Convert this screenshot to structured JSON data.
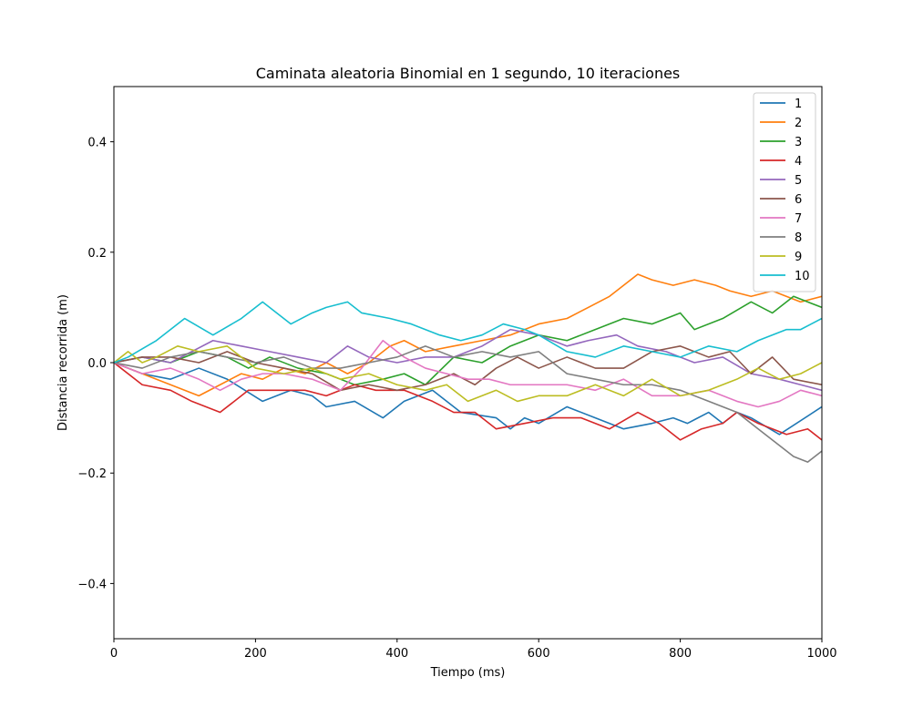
{
  "chart_data": {
    "type": "line",
    "title": "Caminata aleatoria Binomial en 1 segundo, 10 iteraciones",
    "xlabel": "Tiempo (ms)",
    "ylabel": "Distancia recorrida (m)",
    "xlim": [
      0,
      1000
    ],
    "ylim": [
      -0.5,
      0.5
    ],
    "xticks": [
      0,
      200,
      400,
      600,
      800,
      1000
    ],
    "xtick_labels": [
      "0",
      "200",
      "400",
      "600",
      "800",
      "1000"
    ],
    "yticks": [
      -0.4,
      -0.2,
      0.0,
      0.2,
      0.4
    ],
    "ytick_labels": [
      "−0.4",
      "−0.2",
      "0.0",
      "0.2",
      "0.4"
    ],
    "grid": false,
    "legend_position": "top-right",
    "series": [
      {
        "name": "1",
        "color": "#1f77b4",
        "x": [
          0,
          40,
          80,
          120,
          160,
          210,
          250,
          280,
          300,
          340,
          380,
          410,
          450,
          490,
          540,
          560,
          580,
          600,
          640,
          680,
          720,
          760,
          790,
          810,
          840,
          860,
          880,
          900,
          940,
          1000
        ],
        "y": [
          0.0,
          -0.02,
          -0.03,
          -0.01,
          -0.03,
          -0.07,
          -0.05,
          -0.06,
          -0.08,
          -0.07,
          -0.1,
          -0.07,
          -0.05,
          -0.09,
          -0.1,
          -0.12,
          -0.1,
          -0.11,
          -0.08,
          -0.1,
          -0.12,
          -0.11,
          -0.1,
          -0.11,
          -0.09,
          -0.11,
          -0.09,
          -0.1,
          -0.13,
          -0.08
        ]
      },
      {
        "name": "2",
        "color": "#ff7f0e",
        "x": [
          0,
          40,
          80,
          120,
          150,
          180,
          210,
          240,
          270,
          300,
          330,
          360,
          390,
          410,
          440,
          480,
          520,
          560,
          600,
          640,
          670,
          700,
          740,
          760,
          790,
          820,
          850,
          870,
          900,
          930,
          970,
          1000
        ],
        "y": [
          0.0,
          -0.02,
          -0.04,
          -0.06,
          -0.04,
          -0.02,
          -0.03,
          -0.01,
          -0.02,
          0.0,
          -0.02,
          0.0,
          0.03,
          0.04,
          0.02,
          0.03,
          0.04,
          0.05,
          0.07,
          0.08,
          0.1,
          0.12,
          0.16,
          0.15,
          0.14,
          0.15,
          0.14,
          0.13,
          0.12,
          0.13,
          0.11,
          0.12
        ]
      },
      {
        "name": "3",
        "color": "#2ca02c",
        "x": [
          0,
          40,
          80,
          120,
          160,
          190,
          220,
          260,
          300,
          340,
          380,
          410,
          440,
          480,
          520,
          560,
          600,
          640,
          680,
          720,
          760,
          800,
          820,
          860,
          900,
          930,
          960,
          1000
        ],
        "y": [
          0.0,
          0.01,
          0.0,
          0.02,
          0.01,
          -0.01,
          0.01,
          -0.01,
          -0.02,
          -0.04,
          -0.03,
          -0.02,
          -0.04,
          0.01,
          0.0,
          0.03,
          0.05,
          0.04,
          0.06,
          0.08,
          0.07,
          0.09,
          0.06,
          0.08,
          0.11,
          0.09,
          0.12,
          0.1
        ]
      },
      {
        "name": "4",
        "color": "#d62728",
        "x": [
          0,
          40,
          80,
          110,
          150,
          190,
          230,
          270,
          300,
          340,
          370,
          410,
          450,
          480,
          510,
          540,
          580,
          620,
          660,
          700,
          740,
          770,
          800,
          830,
          860,
          880,
          910,
          950,
          980,
          1000
        ],
        "y": [
          0.0,
          -0.04,
          -0.05,
          -0.07,
          -0.09,
          -0.05,
          -0.05,
          -0.05,
          -0.06,
          -0.04,
          -0.05,
          -0.05,
          -0.07,
          -0.09,
          -0.09,
          -0.12,
          -0.11,
          -0.1,
          -0.1,
          -0.12,
          -0.09,
          -0.11,
          -0.14,
          -0.12,
          -0.11,
          -0.09,
          -0.11,
          -0.13,
          -0.12,
          -0.14
        ]
      },
      {
        "name": "5",
        "color": "#9467bd",
        "x": [
          0,
          40,
          80,
          110,
          140,
          180,
          220,
          260,
          300,
          330,
          360,
          400,
          440,
          480,
          520,
          560,
          600,
          640,
          670,
          710,
          740,
          780,
          820,
          860,
          900,
          940,
          970,
          1000
        ],
        "y": [
          0.0,
          0.01,
          0.0,
          0.02,
          0.04,
          0.03,
          0.02,
          0.01,
          0.0,
          0.03,
          0.01,
          0.0,
          0.01,
          0.01,
          0.03,
          0.06,
          0.05,
          0.03,
          0.04,
          0.05,
          0.03,
          0.02,
          0.0,
          0.01,
          -0.02,
          -0.03,
          -0.04,
          -0.05
        ]
      },
      {
        "name": "6",
        "color": "#8c564b",
        "x": [
          0,
          40,
          80,
          120,
          160,
          200,
          240,
          280,
          320,
          360,
          400,
          440,
          480,
          510,
          540,
          570,
          600,
          640,
          680,
          720,
          760,
          800,
          840,
          870,
          900,
          930,
          960,
          1000
        ],
        "y": [
          0.0,
          0.01,
          0.01,
          0.0,
          0.02,
          0.0,
          -0.01,
          -0.02,
          -0.05,
          -0.04,
          -0.05,
          -0.04,
          -0.02,
          -0.04,
          -0.01,
          0.01,
          -0.01,
          0.01,
          -0.01,
          -0.01,
          0.02,
          0.03,
          0.01,
          0.02,
          -0.02,
          0.01,
          -0.03,
          -0.04
        ]
      },
      {
        "name": "7",
        "color": "#e377c2",
        "x": [
          0,
          40,
          80,
          120,
          150,
          180,
          210,
          240,
          280,
          320,
          350,
          380,
          410,
          440,
          470,
          500,
          530,
          560,
          600,
          640,
          680,
          720,
          760,
          800,
          840,
          880,
          910,
          940,
          970,
          1000
        ],
        "y": [
          0.0,
          -0.02,
          -0.01,
          -0.03,
          -0.05,
          -0.03,
          -0.02,
          -0.02,
          -0.03,
          -0.05,
          -0.01,
          0.04,
          0.01,
          -0.01,
          -0.02,
          -0.03,
          -0.03,
          -0.04,
          -0.04,
          -0.04,
          -0.05,
          -0.03,
          -0.06,
          -0.06,
          -0.05,
          -0.07,
          -0.08,
          -0.07,
          -0.05,
          -0.06
        ]
      },
      {
        "name": "8",
        "color": "#7f7f7f",
        "x": [
          0,
          40,
          80,
          120,
          160,
          200,
          240,
          280,
          320,
          360,
          400,
          440,
          480,
          520,
          560,
          600,
          640,
          680,
          720,
          760,
          800,
          840,
          880,
          910,
          940,
          960,
          980,
          1000
        ],
        "y": [
          0.0,
          -0.01,
          0.01,
          0.02,
          0.01,
          0.0,
          0.01,
          -0.01,
          -0.01,
          0.0,
          0.01,
          0.03,
          0.01,
          0.02,
          0.01,
          0.02,
          -0.02,
          -0.03,
          -0.04,
          -0.04,
          -0.05,
          -0.07,
          -0.09,
          -0.12,
          -0.15,
          -0.17,
          -0.18,
          -0.16
        ]
      },
      {
        "name": "9",
        "color": "#bcbd22",
        "x": [
          0,
          20,
          40,
          60,
          90,
          120,
          160,
          200,
          240,
          280,
          320,
          360,
          400,
          440,
          470,
          500,
          540,
          570,
          600,
          640,
          680,
          720,
          760,
          800,
          840,
          880,
          910,
          940,
          970,
          1000
        ],
        "y": [
          0.0,
          0.02,
          0.0,
          0.01,
          0.03,
          0.02,
          0.03,
          -0.01,
          -0.02,
          -0.01,
          -0.03,
          -0.02,
          -0.04,
          -0.05,
          -0.04,
          -0.07,
          -0.05,
          -0.07,
          -0.06,
          -0.06,
          -0.04,
          -0.06,
          -0.03,
          -0.06,
          -0.05,
          -0.03,
          -0.01,
          -0.03,
          -0.02,
          0.0
        ]
      },
      {
        "name": "10",
        "color": "#17becf",
        "x": [
          0,
          20,
          60,
          100,
          140,
          180,
          210,
          250,
          280,
          300,
          330,
          350,
          390,
          420,
          460,
          490,
          520,
          550,
          580,
          600,
          640,
          680,
          720,
          760,
          800,
          840,
          880,
          910,
          950,
          970,
          1000
        ],
        "y": [
          0.0,
          0.01,
          0.04,
          0.08,
          0.05,
          0.08,
          0.11,
          0.07,
          0.09,
          0.1,
          0.11,
          0.09,
          0.08,
          0.07,
          0.05,
          0.04,
          0.05,
          0.07,
          0.06,
          0.05,
          0.02,
          0.01,
          0.03,
          0.02,
          0.01,
          0.03,
          0.02,
          0.04,
          0.06,
          0.06,
          0.08
        ]
      }
    ]
  }
}
